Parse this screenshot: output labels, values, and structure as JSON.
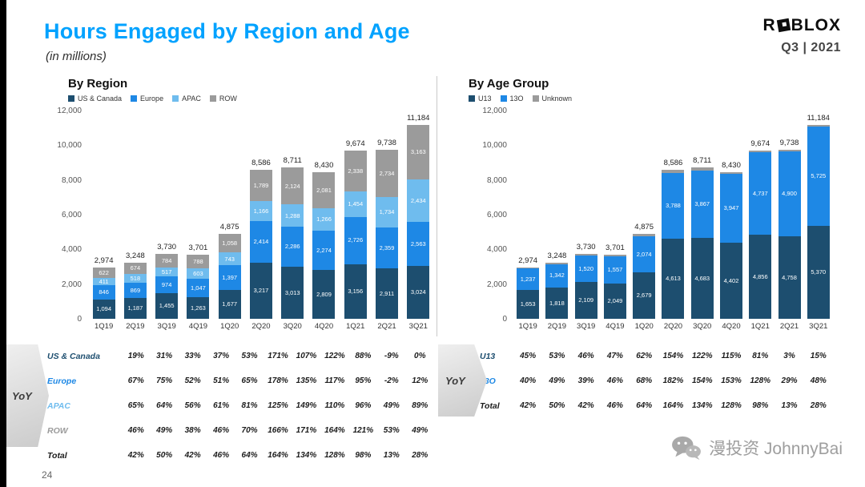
{
  "slide": {
    "title": "Hours Engaged by Region and Age",
    "subtitle": "(in millions)",
    "brand": "ROBLOX",
    "brand_prefix": "R",
    "brand_suffix": "BLOX",
    "period": "Q3 | 2021",
    "yoy_label": "YoY",
    "page_number": "24",
    "watermark": "漫投资 JohnnyBai"
  },
  "colors": {
    "title_blue": "#00A2FF",
    "us_canada": "#1D4E6F",
    "europe": "#1E88E5",
    "apac": "#6FBCEE",
    "row": "#9B9B9B",
    "u13": "#1D4E6F",
    "o13": "#1E88E5",
    "unknown": "#9B9B9B",
    "total": "#1c1c1c"
  },
  "y_axis": {
    "ticks": [
      "12,000",
      "10,000",
      "8,000",
      "6,000",
      "4,000",
      "2,000",
      "0"
    ],
    "max": 12000
  },
  "chart_data": [
    {
      "type": "bar",
      "stacked": true,
      "title": "By Region",
      "xlabel": "",
      "ylabel": "",
      "ylim": [
        0,
        12000
      ],
      "grid": false,
      "legend_position": "top",
      "categories": [
        "1Q19",
        "2Q19",
        "3Q19",
        "4Q19",
        "1Q20",
        "2Q20",
        "3Q20",
        "4Q20",
        "1Q21",
        "2Q21",
        "3Q21"
      ],
      "totals": [
        2974,
        3248,
        3730,
        3701,
        4875,
        8586,
        8711,
        8430,
        9674,
        9738,
        11184
      ],
      "series": [
        {
          "name": "US & Canada",
          "color_key": "us_canada",
          "values": [
            1094,
            1187,
            1455,
            1263,
            1677,
            3217,
            3013,
            2809,
            3156,
            2911,
            3024
          ]
        },
        {
          "name": "Europe",
          "color_key": "europe",
          "values": [
            846,
            869,
            974,
            1047,
            1397,
            2414,
            2286,
            2274,
            2726,
            2359,
            2563
          ]
        },
        {
          "name": "APAC",
          "color_key": "apac",
          "values": [
            411,
            518,
            517,
            603,
            743,
            1166,
            1288,
            1266,
            1454,
            1734,
            2434
          ]
        },
        {
          "name": "ROW",
          "color_key": "row",
          "values": [
            622,
            674,
            784,
            788,
            1058,
            1789,
            2124,
            2081,
            2338,
            2734,
            3163
          ]
        }
      ]
    },
    {
      "type": "bar",
      "stacked": true,
      "title": "By Age Group",
      "xlabel": "",
      "ylabel": "",
      "ylim": [
        0,
        12000
      ],
      "grid": false,
      "legend_position": "top",
      "categories": [
        "1Q19",
        "2Q19",
        "3Q19",
        "4Q19",
        "1Q20",
        "2Q20",
        "3Q20",
        "4Q20",
        "1Q21",
        "2Q21",
        "3Q21"
      ],
      "totals": [
        2974,
        3248,
        3730,
        3701,
        4875,
        8586,
        8711,
        8430,
        9674,
        9738,
        11184
      ],
      "series": [
        {
          "name": "U13",
          "color_key": "u13",
          "values": [
            1653,
            1818,
            2109,
            2049,
            2679,
            4613,
            4683,
            4402,
            4856,
            4758,
            5370
          ]
        },
        {
          "name": "13O",
          "color_key": "o13",
          "values": [
            1237,
            1342,
            1520,
            1557,
            2074,
            3788,
            3867,
            3947,
            4737,
            4900,
            5725
          ]
        },
        {
          "name": "Unknown",
          "color_key": "unknown",
          "show_labels": false,
          "values": [
            84,
            88,
            101,
            95,
            122,
            185,
            161,
            81,
            81,
            80,
            89
          ]
        }
      ]
    }
  ],
  "yoy_tables": [
    {
      "rows": [
        {
          "label": "US & Canada",
          "color_key": "us_canada",
          "values": [
            "19%",
            "31%",
            "33%",
            "37%",
            "53%",
            "171%",
            "107%",
            "122%",
            "88%",
            "-9%",
            "0%"
          ]
        },
        {
          "label": "Europe",
          "color_key": "europe",
          "values": [
            "67%",
            "75%",
            "52%",
            "51%",
            "65%",
            "178%",
            "135%",
            "117%",
            "95%",
            "-2%",
            "12%"
          ]
        },
        {
          "label": "APAC",
          "color_key": "apac",
          "values": [
            "65%",
            "64%",
            "56%",
            "61%",
            "81%",
            "125%",
            "149%",
            "110%",
            "96%",
            "49%",
            "89%"
          ]
        },
        {
          "label": "ROW",
          "color_key": "row",
          "values": [
            "46%",
            "49%",
            "38%",
            "46%",
            "70%",
            "166%",
            "171%",
            "164%",
            "121%",
            "53%",
            "49%"
          ]
        },
        {
          "label": "Total",
          "color_key": "total",
          "values": [
            "42%",
            "50%",
            "42%",
            "46%",
            "64%",
            "164%",
            "134%",
            "128%",
            "98%",
            "13%",
            "28%"
          ]
        }
      ]
    },
    {
      "rows": [
        {
          "label": "U13",
          "color_key": "u13",
          "values": [
            "45%",
            "53%",
            "46%",
            "47%",
            "62%",
            "154%",
            "122%",
            "115%",
            "81%",
            "3%",
            "15%"
          ]
        },
        {
          "label": "13O",
          "color_key": "o13",
          "values": [
            "40%",
            "49%",
            "39%",
            "46%",
            "68%",
            "182%",
            "154%",
            "153%",
            "128%",
            "29%",
            "48%"
          ]
        },
        {
          "label": "Total",
          "color_key": "total",
          "values": [
            "42%",
            "50%",
            "42%",
            "46%",
            "64%",
            "164%",
            "134%",
            "128%",
            "98%",
            "13%",
            "28%"
          ]
        }
      ]
    }
  ]
}
